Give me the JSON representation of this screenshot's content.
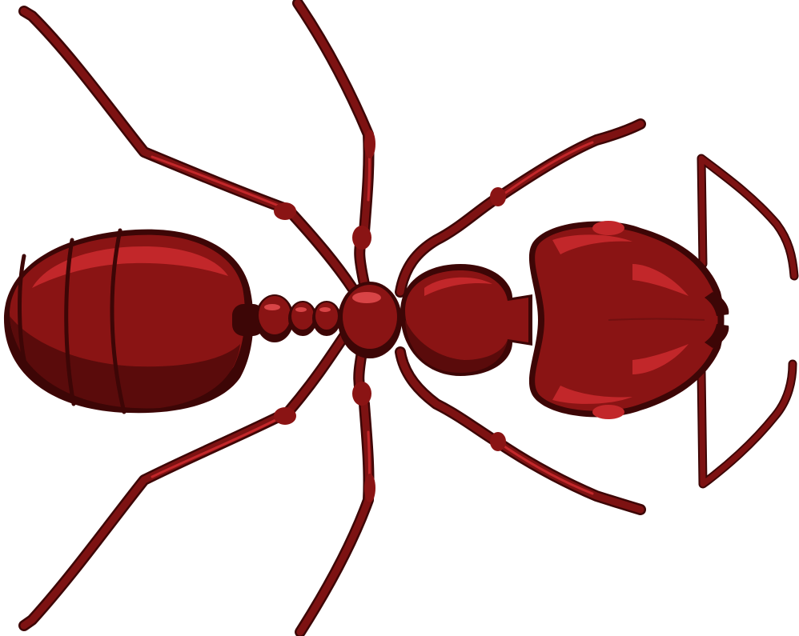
{
  "illustration": {
    "subject": "ant-icon",
    "colors": {
      "background": "#ffffff",
      "body": "#8a1414",
      "body_dark": "#5a0b0b",
      "body_deep": "#3d0606",
      "highlight": "#c2272a",
      "shine": "#d84446",
      "leg": "#7d1212"
    }
  }
}
